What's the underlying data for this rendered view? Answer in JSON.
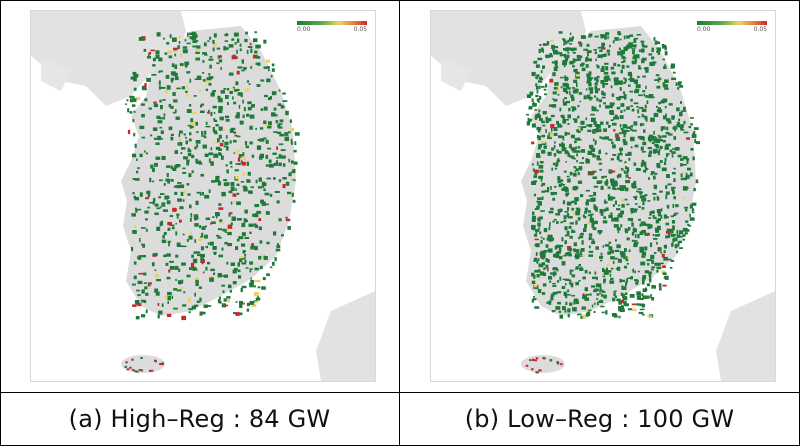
{
  "panels": [
    {
      "caption": "(a) High–Reg : 84 GW",
      "legend": {
        "min": "0.00",
        "max": "0.05"
      },
      "density": "sparse",
      "hotspot_level": "high"
    },
    {
      "caption": "(b) Low–Reg : 100 GW",
      "legend": {
        "min": "0.00",
        "max": "0.05"
      },
      "density": "dense",
      "hotspot_level": "low"
    }
  ],
  "colors": {
    "land": "#dcdcdc",
    "low": "#1f7a3a",
    "mid": "#e8d36a",
    "high": "#c8282a"
  }
}
